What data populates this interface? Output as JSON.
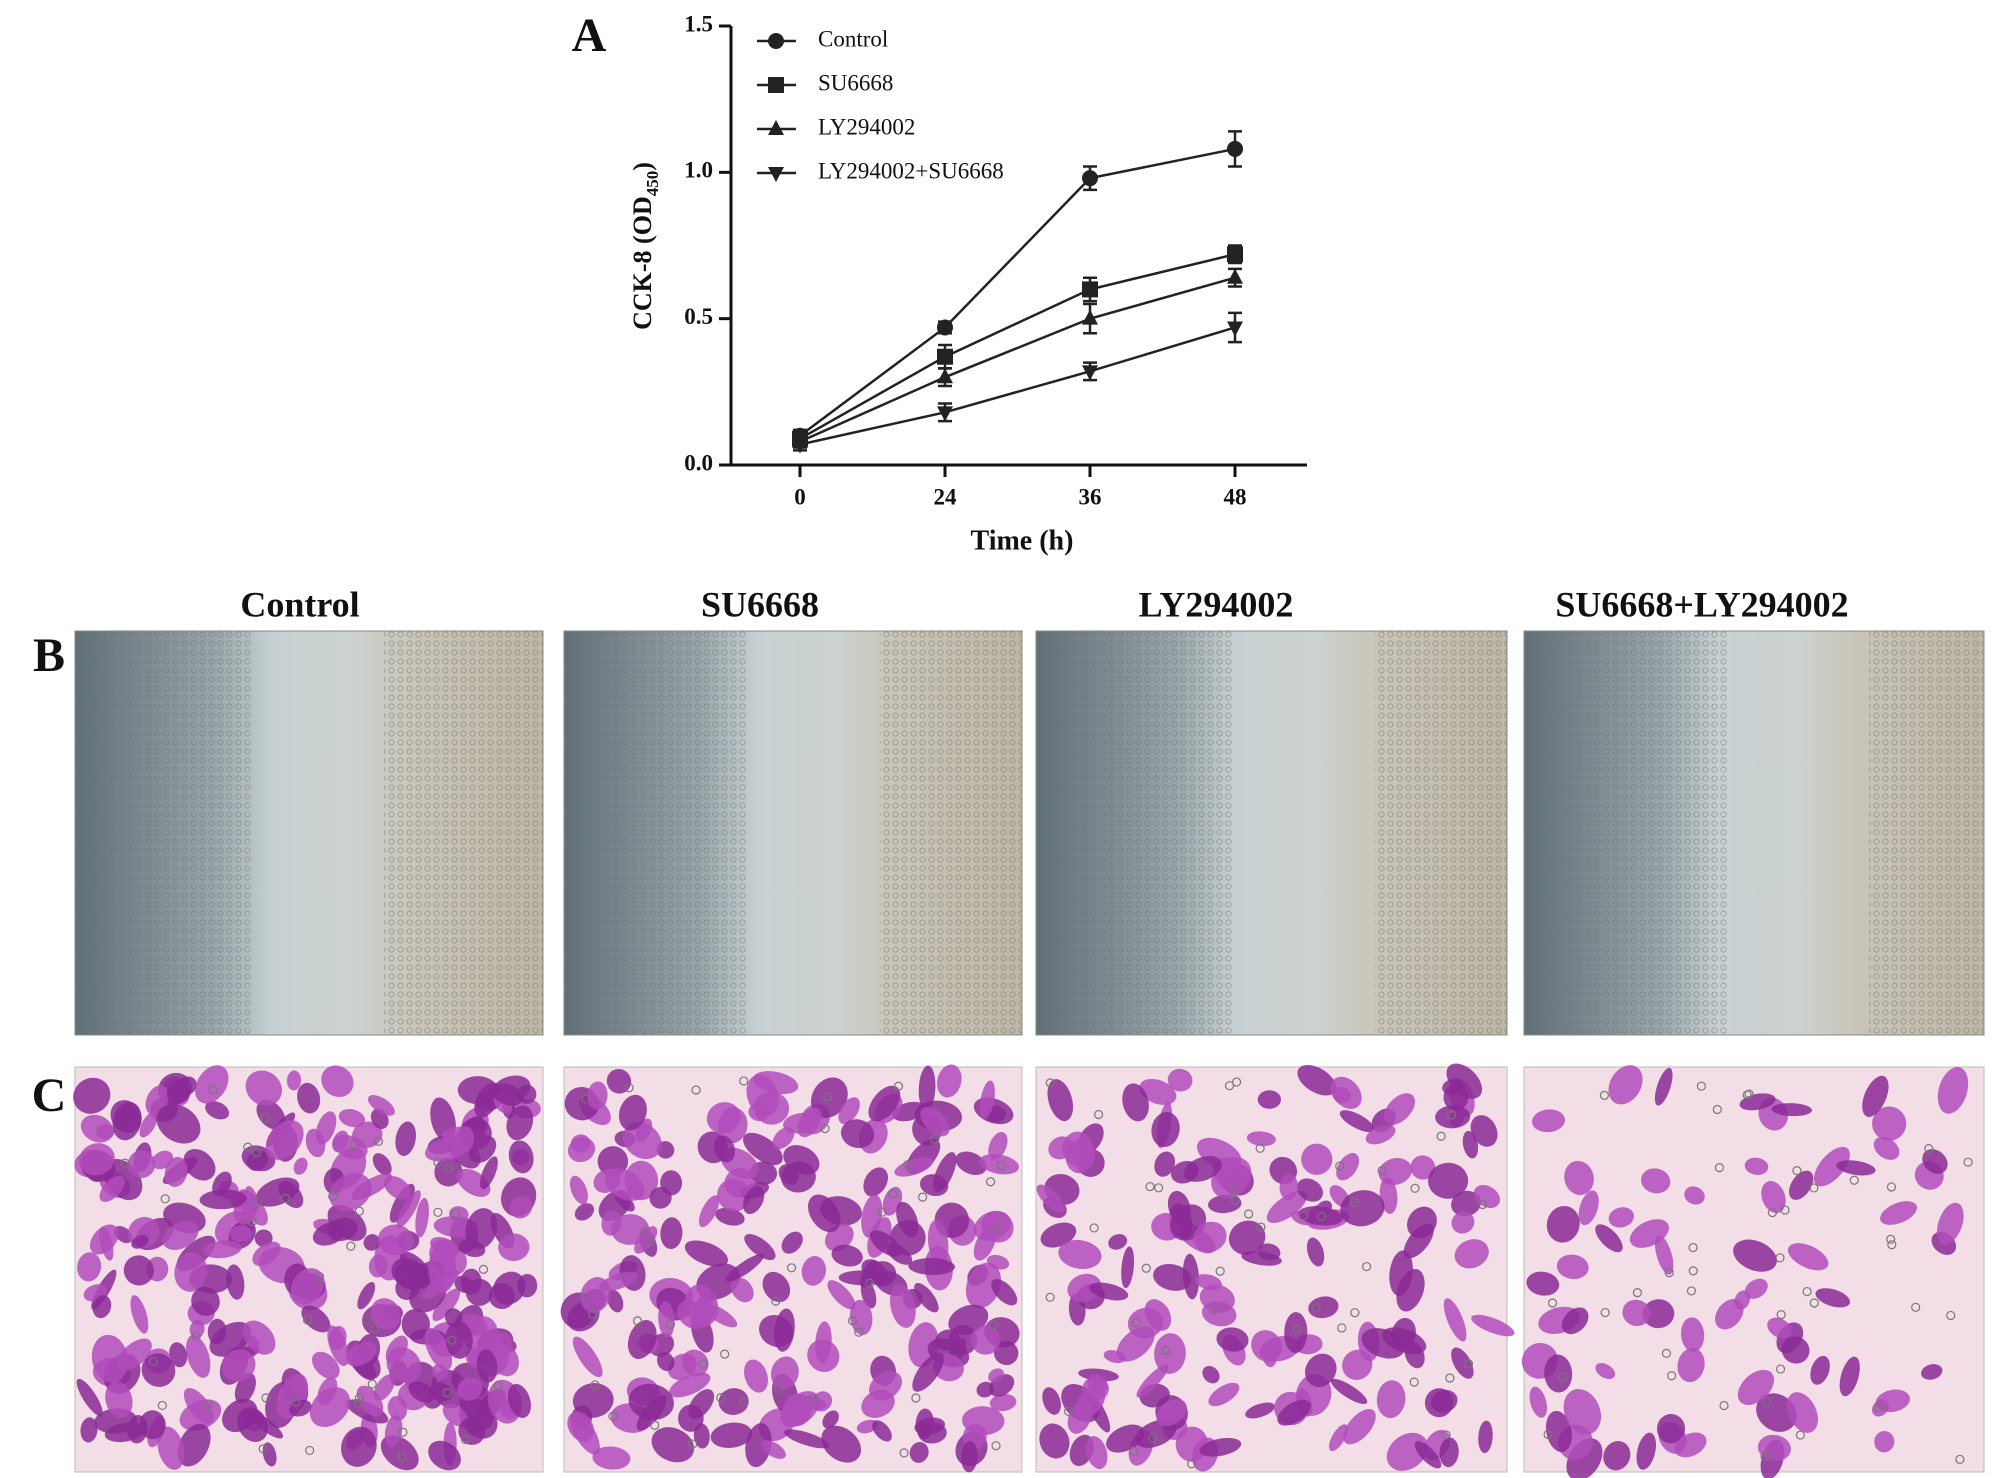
{
  "panels": [
    "A",
    "B",
    "C"
  ],
  "column_titles": [
    "Control",
    "SU6668",
    "LY294002",
    "SU6668+LY294002"
  ],
  "chart_data": {
    "type": "line",
    "x_label": "Time (h)",
    "y_label_parts": [
      "CCK-8 (OD",
      "450",
      ")"
    ],
    "categories": [
      "0",
      "24",
      "36",
      "48"
    ],
    "ylim": [
      0,
      1.5
    ],
    "yticks": [
      {
        "value": 0,
        "label": "0.0"
      },
      {
        "value": 0.5,
        "label": "0.5"
      },
      {
        "value": 1,
        "label": "1.0"
      },
      {
        "value": 1.5,
        "label": "1.5"
      }
    ],
    "series": [
      {
        "name": "Control",
        "marker": "circle",
        "color": "#222",
        "values": [
          0.1,
          0.47,
          0.98,
          1.08
        ],
        "errors": [
          0.02,
          0.02,
          0.04,
          0.06
        ]
      },
      {
        "name": "SU6668",
        "marker": "square",
        "color": "#222",
        "values": [
          0.09,
          0.37,
          0.6,
          0.72
        ],
        "errors": [
          0.02,
          0.04,
          0.04,
          0.03
        ]
      },
      {
        "name": "LY294002",
        "marker": "triangle-up",
        "color": "#222",
        "values": [
          0.08,
          0.3,
          0.5,
          0.64
        ],
        "errors": [
          0.02,
          0.03,
          0.05,
          0.03
        ]
      },
      {
        "name": "LY294002+SU6668",
        "marker": "triangle-down",
        "color": "#222",
        "values": [
          0.07,
          0.18,
          0.32,
          0.47
        ],
        "errors": [
          0.02,
          0.03,
          0.03,
          0.05
        ]
      }
    ]
  }
}
